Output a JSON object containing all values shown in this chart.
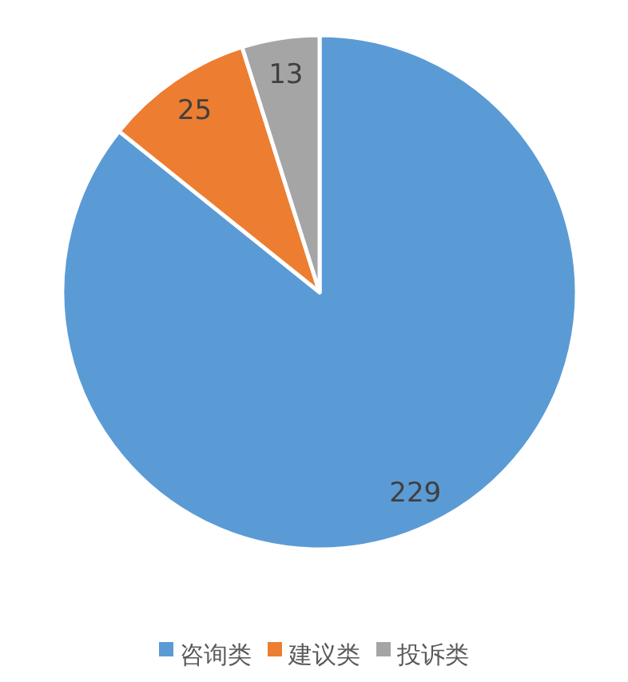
{
  "chart_data": {
    "type": "pie",
    "categories": [
      "咨询类",
      "建议类",
      "投诉类"
    ],
    "values": [
      229,
      25,
      13
    ],
    "colors": [
      "#5b9bd5",
      "#ed7d31",
      "#a5a5a5"
    ],
    "data_labels": true,
    "legend": "bottom"
  }
}
